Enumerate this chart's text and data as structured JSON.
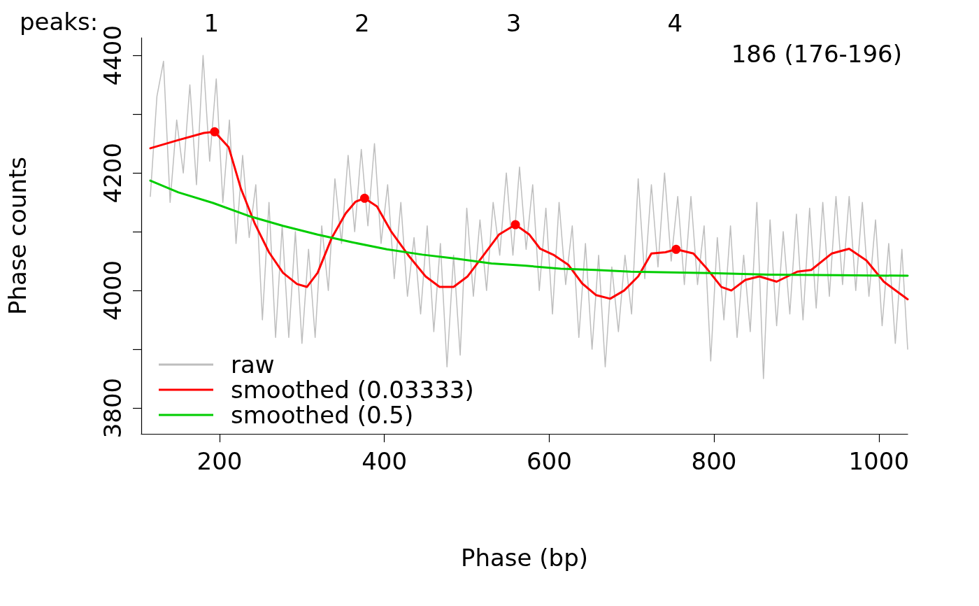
{
  "chart_data": {
    "type": "line",
    "xlabel": "Phase (bp)",
    "ylabel": "Phase counts",
    "annotations": [
      "peaks:",
      "186 (176-196)",
      "1",
      "2",
      "3",
      "4"
    ],
    "xlim": [
      105,
      1035
    ],
    "xticks": [
      200,
      400,
      600,
      800,
      1000
    ],
    "ylim": [
      3756,
      4430
    ],
    "yticks": [
      3800,
      {
        "value": 3900,
        "label": null
      },
      4000,
      {
        "value": 4100,
        "label": null
      },
      4200,
      {
        "value": 4300,
        "label": null
      },
      4400
    ],
    "grid": false,
    "legend": "bottom left",
    "marker": "none",
    "line_style": "solid",
    "series": [
      {
        "name": "raw",
        "color": "#bebebe",
        "x": [
          116,
          124,
          132,
          140,
          148,
          156,
          164,
          172,
          180,
          188,
          196,
          204,
          212,
          220,
          228,
          236,
          244,
          252,
          260,
          268,
          276,
          284,
          292,
          300,
          308,
          316,
          324,
          332,
          340,
          348,
          356,
          364,
          372,
          380,
          388,
          396,
          404,
          412,
          420,
          428,
          436,
          444,
          452,
          460,
          468,
          476,
          484,
          492,
          500,
          508,
          516,
          524,
          532,
          540,
          548,
          556,
          564,
          572,
          580,
          588,
          596,
          604,
          612,
          620,
          628,
          636,
          644,
          652,
          660,
          668,
          676,
          684,
          692,
          700,
          708,
          716,
          724,
          732,
          740,
          748,
          756,
          764,
          772,
          780,
          788,
          796,
          804,
          812,
          820,
          828,
          836,
          844,
          852,
          860,
          868,
          876,
          884,
          892,
          900,
          908,
          916,
          924,
          932,
          940,
          948,
          956,
          964,
          972,
          980,
          988,
          996,
          1004,
          1012,
          1020,
          1028,
          1035
        ],
        "values": [
          4160,
          4330,
          4390,
          4150,
          4290,
          4200,
          4350,
          4180,
          4400,
          4220,
          4360,
          4150,
          4290,
          4080,
          4230,
          4090,
          4180,
          3950,
          4150,
          3920,
          4110,
          3920,
          4100,
          3910,
          4070,
          3920,
          4110,
          4000,
          4190,
          4080,
          4230,
          4100,
          4240,
          4110,
          4250,
          4080,
          4180,
          4020,
          4150,
          3990,
          4090,
          3960,
          4110,
          3930,
          4080,
          3870,
          4060,
          3890,
          4140,
          3990,
          4120,
          4000,
          4150,
          4060,
          4200,
          4060,
          4210,
          4070,
          4180,
          4000,
          4140,
          3960,
          4150,
          4010,
          4110,
          3920,
          4080,
          3900,
          4060,
          3870,
          4040,
          3930,
          4060,
          3960,
          4190,
          4020,
          4180,
          4040,
          4200,
          4050,
          4160,
          4010,
          4160,
          4010,
          4110,
          3880,
          4090,
          3950,
          4110,
          3920,
          4060,
          3930,
          4150,
          3850,
          4120,
          3940,
          4100,
          3960,
          4130,
          3950,
          4140,
          3970,
          4150,
          3990,
          4160,
          4010,
          4160,
          4000,
          4150,
          3990,
          4120,
          3940,
          4080,
          3910,
          4070,
          3900
        ]
      },
      {
        "name": "smoothed (0.03333)",
        "color": "#ff0000",
        "x": [
          116,
          150,
          181,
          194,
          211,
          226,
          243,
          260,
          277,
          294,
          306,
          319,
          336,
          353,
          365,
          376,
          391,
          408,
          429,
          450,
          467,
          484,
          501,
          522,
          539,
          559,
          576,
          589,
          606,
          623,
          640,
          657,
          674,
          691,
          708,
          724,
          741,
          754,
          775,
          792,
          809,
          821,
          838,
          855,
          876,
          901,
          918,
          943,
          964,
          985,
          1006,
          1035
        ],
        "values": [
          4242,
          4256,
          4268,
          4270,
          4244,
          4173,
          4113,
          4065,
          4030,
          4011,
          4006,
          4030,
          4089,
          4131,
          4151,
          4157,
          4143,
          4101,
          4060,
          4024,
          4006,
          4006,
          4024,
          4063,
          4095,
          4112,
          4095,
          4071,
          4060,
          4044,
          4012,
          3992,
          3986,
          4000,
          4024,
          4063,
          4065,
          4070,
          4063,
          4036,
          4006,
          4000,
          4018,
          4024,
          4015,
          4032,
          4035,
          4063,
          4071,
          4051,
          4015,
          3985
        ]
      },
      {
        "name": "smoothed (0.5)",
        "color": "#00cd00",
        "x": [
          116,
          150,
          192,
          235,
          277,
          319,
          361,
          403,
          446,
          488,
          530,
          572,
          614,
          656,
          699,
          783,
          867,
          952,
          1035
        ],
        "values": [
          4187,
          4167,
          4149,
          4127,
          4110,
          4095,
          4082,
          4070,
          4061,
          4054,
          4046,
          4042,
          4037,
          4035,
          4032,
          4030,
          4027,
          4026,
          4025
        ]
      },
      {
        "type": "scatter",
        "marker": "circle",
        "color": "#ff0000",
        "x": [
          194,
          376,
          559,
          754
        ],
        "values": [
          4270,
          4157,
          4112,
          4070
        ]
      }
    ]
  }
}
